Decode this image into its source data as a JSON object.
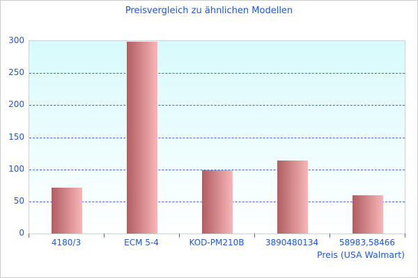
{
  "chart_data": {
    "type": "bar",
    "title": "Preisvergleich zu ähnlichen Modellen",
    "categories": [
      "4180/3",
      "ECM 5-4",
      "KOD-PM210B",
      "3890480134",
      "58983,58466"
    ],
    "values": [
      72,
      299,
      99,
      114,
      60
    ],
    "xlabel": "Preis (USA Walmart)",
    "ylabel": "",
    "ylim": [
      0,
      300
    ],
    "ytick_step": 50,
    "ytick_labels": [
      "0",
      "50",
      "100",
      "150",
      "200",
      "250",
      "300"
    ],
    "grid": "horizontal-dashed",
    "legend": "none",
    "bar_orientation": "vertical"
  },
  "colors": {
    "text_blue": "#1c57d6",
    "gridline": "#3a6cd0",
    "bar_gradient_left": "#b05d60",
    "bar_gradient_right": "#f8b6b8",
    "plot_bg_top": "#d8fafb",
    "plot_bg_bottom": "#ffffff",
    "plot_border": "#c9d4d6",
    "outer_border": "#cccccc"
  }
}
